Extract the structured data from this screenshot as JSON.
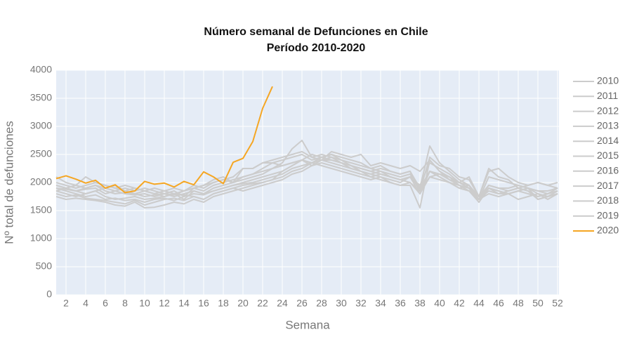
{
  "chart_data": {
    "type": "line",
    "title": "Número semanal de Defunciones en Chile",
    "subtitle": "Período 2010-2020",
    "x_label": "Semana",
    "y_label": "Nº total de defunciones",
    "x": [
      1,
      2,
      3,
      4,
      5,
      6,
      7,
      8,
      9,
      10,
      11,
      12,
      13,
      14,
      15,
      16,
      17,
      18,
      19,
      20,
      21,
      22,
      23,
      24,
      25,
      26,
      27,
      28,
      29,
      30,
      31,
      32,
      33,
      34,
      35,
      36,
      37,
      38,
      39,
      40,
      41,
      42,
      43,
      44,
      45,
      46,
      47,
      48,
      49,
      50,
      51,
      52
    ],
    "xlim": [
      1,
      52
    ],
    "xticks": [
      2,
      4,
      6,
      8,
      10,
      12,
      14,
      16,
      18,
      20,
      22,
      24,
      26,
      28,
      30,
      32,
      34,
      36,
      38,
      40,
      42,
      44,
      46,
      48,
      50,
      52
    ],
    "ylim": [
      0,
      4000
    ],
    "yticks": [
      0,
      500,
      1000,
      1500,
      2000,
      2500,
      3000,
      3500,
      4000
    ],
    "grid": true,
    "legend": "right",
    "series": [
      {
        "name": "2010",
        "color": "#cccccc",
        "values": [
          1900,
          1850,
          1800,
          1750,
          1780,
          1700,
          1720,
          1680,
          1700,
          1650,
          1700,
          1720,
          1680,
          1750,
          1800,
          1780,
          1850,
          1900,
          1950,
          2000,
          2050,
          2100,
          2150,
          2200,
          2300,
          2400,
          2350,
          2300,
          2250,
          2200,
          2150,
          2100,
          2050,
          2100,
          2000,
          1950,
          2000,
          1850,
          2200,
          2100,
          2000,
          1950,
          1900,
          1700,
          1800,
          1750,
          1800,
          1850,
          1800,
          1750,
          1800,
          1850
        ]
      },
      {
        "name": "2011",
        "color": "#cccccc",
        "values": [
          1800,
          1750,
          1780,
          1720,
          1700,
          1680,
          1650,
          1620,
          1680,
          1600,
          1650,
          1700,
          1720,
          1680,
          1750,
          1700,
          1800,
          1850,
          1900,
          1950,
          1980,
          2000,
          2050,
          2100,
          2200,
          2250,
          2350,
          2450,
          2500,
          2400,
          2300,
          2250,
          2200,
          2150,
          2100,
          2050,
          2000,
          1800,
          2100,
          2150,
          2050,
          1950,
          1900,
          1650,
          1900,
          1800,
          1850,
          1900,
          1850,
          1700,
          1750,
          1800
        ]
      },
      {
        "name": "2012",
        "color": "#cccccc",
        "values": [
          1850,
          1800,
          1750,
          1800,
          1850,
          1750,
          1700,
          1720,
          1750,
          1700,
          1720,
          1750,
          1800,
          1780,
          1750,
          1700,
          1800,
          1850,
          1900,
          1850,
          1900,
          1950,
          2000,
          2050,
          2150,
          2200,
          2300,
          2400,
          2450,
          2350,
          2300,
          2200,
          2150,
          2100,
          2050,
          2000,
          2100,
          1900,
          2200,
          2150,
          2100,
          2000,
          1900,
          1700,
          1850,
          1800,
          1800,
          1850,
          1900,
          1800,
          1750,
          1850
        ]
      },
      {
        "name": "2013",
        "color": "#cccccc",
        "values": [
          1750,
          1700,
          1720,
          1700,
          1680,
          1650,
          1600,
          1580,
          1650,
          1550,
          1560,
          1600,
          1650,
          1620,
          1700,
          1650,
          1750,
          1800,
          1850,
          1900,
          1950,
          2000,
          2050,
          2200,
          2300,
          2400,
          2500,
          2450,
          2400,
          2350,
          2250,
          2200,
          2100,
          2050,
          2000,
          1950,
          1950,
          1550,
          2400,
          2200,
          2100,
          1950,
          1850,
          1700,
          1900,
          1850,
          1800,
          1700,
          1750,
          1800,
          1700,
          1800
        ]
      },
      {
        "name": "2014",
        "color": "#cccccc",
        "values": [
          1900,
          1880,
          1850,
          1900,
          1950,
          1850,
          1800,
          1820,
          1800,
          1750,
          1780,
          1800,
          1750,
          1800,
          1850,
          1800,
          1850,
          1900,
          1950,
          1980,
          2000,
          2050,
          2100,
          2150,
          2250,
          2300,
          2350,
          2400,
          2350,
          2300,
          2250,
          2200,
          2150,
          2200,
          2100,
          2050,
          2100,
          1950,
          2350,
          2250,
          2150,
          2000,
          1950,
          1750,
          1950,
          1900,
          1900,
          1950,
          1900,
          1850,
          1800,
          1900
        ]
      },
      {
        "name": "2015",
        "color": "#cccccc",
        "values": [
          1950,
          1900,
          1850,
          1880,
          1900,
          1800,
          1850,
          1800,
          1780,
          1800,
          1750,
          1800,
          1780,
          1850,
          1900,
          1850,
          1950,
          2000,
          2050,
          2100,
          2150,
          2250,
          2350,
          2400,
          2450,
          2500,
          2400,
          2450,
          2500,
          2450,
          2400,
          2350,
          2250,
          2300,
          2200,
          2150,
          2200,
          1900,
          2650,
          2350,
          2200,
          2050,
          1950,
          1700,
          2100,
          2050,
          2000,
          1950,
          1900,
          1850,
          1850,
          1900
        ]
      },
      {
        "name": "2016",
        "color": "#cccccc",
        "values": [
          1850,
          1900,
          1950,
          2100,
          2000,
          1950,
          1900,
          1850,
          1900,
          1850,
          1800,
          1850,
          1900,
          1850,
          1950,
          1900,
          2000,
          2050,
          2100,
          2250,
          2250,
          2350,
          2400,
          2450,
          2500,
          2550,
          2450,
          2500,
          2450,
          2400,
          2350,
          2300,
          2250,
          2200,
          2150,
          2100,
          2150,
          1850,
          2450,
          2300,
          2250,
          2100,
          2050,
          1750,
          2200,
          2250,
          2100,
          2000,
          1950,
          2000,
          1950,
          1900
        ]
      },
      {
        "name": "2017",
        "color": "#cccccc",
        "values": [
          1950,
          1900,
          1850,
          1800,
          1850,
          1900,
          1950,
          1850,
          1800,
          1850,
          1800,
          1750,
          1800,
          1700,
          1850,
          1800,
          1900,
          1950,
          2000,
          2050,
          2100,
          2150,
          2250,
          2350,
          2600,
          2750,
          2450,
          2400,
          2550,
          2500,
          2450,
          2500,
          2300,
          2350,
          2300,
          2250,
          2300,
          2200,
          2400,
          2200,
          2050,
          2000,
          2100,
          1750,
          2250,
          2100,
          2050,
          1900,
          1950,
          2000,
          1950,
          2000
        ]
      },
      {
        "name": "2018",
        "color": "#cccccc",
        "values": [
          2000,
          1950,
          1900,
          1950,
          2000,
          1950,
          1900,
          1950,
          1900,
          1850,
          1900,
          1850,
          1800,
          1850,
          1900,
          1950,
          2000,
          2050,
          2000,
          2100,
          2150,
          2200,
          2250,
          2300,
          2350,
          2400,
          2350,
          2400,
          2400,
          2350,
          2300,
          2250,
          2200,
          2250,
          2200,
          2150,
          2200,
          1850,
          2100,
          2050,
          2000,
          1900,
          1850,
          1650,
          1900,
          1850,
          1800,
          1850,
          1900,
          1700,
          1750,
          1800
        ]
      },
      {
        "name": "2019",
        "color": "#cccccc",
        "values": [
          2100,
          2000,
          1950,
          1900,
          1950,
          1900,
          1850,
          1900,
          1850,
          1900,
          1850,
          1800,
          1850,
          1750,
          1900,
          1950,
          2050,
          2100,
          2000,
          2250,
          2250,
          2350,
          2350,
          2300,
          2350,
          2400,
          2300,
          2350,
          2300,
          2250,
          2200,
          2150,
          2100,
          2150,
          2100,
          2050,
          2100,
          1800,
          2200,
          2100,
          2000,
          1900,
          1950,
          1700,
          1950,
          1900,
          1850,
          1900,
          1850,
          1750,
          1800,
          1850
        ]
      },
      {
        "name": "2020",
        "color": "#f5a623",
        "values": [
          2070,
          2120,
          2060,
          1990,
          2040,
          1900,
          1960,
          1820,
          1850,
          2020,
          1970,
          1990,
          1920,
          2020,
          1960,
          2190,
          2100,
          1980,
          2360,
          2430,
          2730,
          3320,
          3710,
          null,
          null,
          null,
          null,
          null,
          null,
          null,
          null,
          null,
          null,
          null,
          null,
          null,
          null,
          null,
          null,
          null,
          null,
          null,
          null,
          null,
          null,
          null,
          null,
          null,
          null,
          null,
          null,
          null
        ]
      }
    ]
  }
}
